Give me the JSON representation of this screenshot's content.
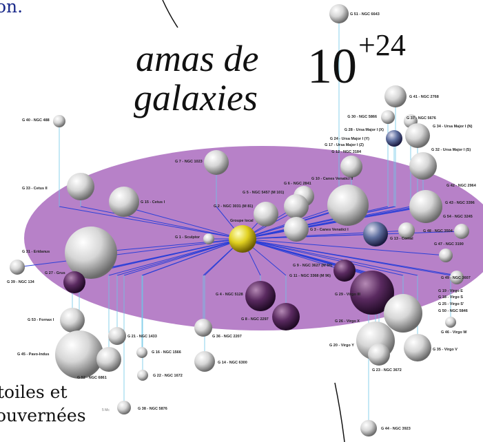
{
  "texts": {
    "top_fragment": "on.",
    "title_line1": "amas de",
    "title_line2": "galaxies",
    "scale_base": "10",
    "scale_exponent": "+24",
    "bottom_line1": "toiles et",
    "bottom_line2": "ouvernées",
    "scale_note": "5 Mc"
  },
  "nodes": [
    {
      "label": "G 51 - NGC 6643"
    },
    {
      "label": "G 41 - NGC 2768"
    },
    {
      "label": "G 30 - NGC 5866"
    },
    {
      "label": "G 37 - NGC 5676"
    },
    {
      "label": "G 34 - Ursa Major I (N)"
    },
    {
      "label": "G 28 - Ursa Major I (X)"
    },
    {
      "label": "G 24 - Ursa Major I (Y)"
    },
    {
      "label": "G 17 - Ursa Major I (Z)"
    },
    {
      "label": "G 12 - NGC 3184"
    },
    {
      "label": "G 32 - Ursa Major I (S)"
    },
    {
      "label": "G 40 - NGC 488"
    },
    {
      "label": "G 7 - NGC 1023"
    },
    {
      "label": "G 33 - Cetus II"
    },
    {
      "label": "G 15 - Cetus I"
    },
    {
      "label": "G 10 - Canes Venatici II"
    },
    {
      "label": "G 6 - NGC 2841"
    },
    {
      "label": "G 5 - NGC 5457 (M 101)"
    },
    {
      "label": "G 2 - NGC 3031 (M 81)"
    },
    {
      "label": "G 42 - NGC 2964"
    },
    {
      "label": "G 43 - NGC 3396"
    },
    {
      "label": "G 54 - NGC 3245"
    },
    {
      "label": "G 48 - NGC 3504"
    },
    {
      "label": "G 13 - Comal"
    },
    {
      "label": "G 3 - Canes Venatici I"
    },
    {
      "label": "Groupe local"
    },
    {
      "label": "G 1 - Sculptor"
    },
    {
      "label": "G 47 - NGC 3190"
    },
    {
      "label": "G 31 - Eridanus"
    },
    {
      "label": "G 9 - NGC 3627 (M 66)"
    },
    {
      "label": "G 11 - NGC 3368 (M 96)"
    },
    {
      "label": "G 39 - NGC 134"
    },
    {
      "label": "G 27 - Grus"
    },
    {
      "label": "G 49 - NGC 3607"
    },
    {
      "label": "G 19 - Virgo E"
    },
    {
      "label": "G 18 - Virgo S"
    },
    {
      "label": "G 25 - Virgo S'"
    },
    {
      "label": "G 50 - NGC 5846"
    },
    {
      "label": "G 4 - NGC 5128"
    },
    {
      "label": "G 29 - Virgo III"
    },
    {
      "label": "G 26 - Virgo X"
    },
    {
      "label": "G 8 - NGC 2297"
    },
    {
      "label": "G 46 - Virgo W"
    },
    {
      "label": "G 53 - Fornax I"
    },
    {
      "label": "G 36 - NGC 2207"
    },
    {
      "label": "G 21 - NGC 1433"
    },
    {
      "label": "G 20 - Virgo Y"
    },
    {
      "label": "G 35 - Virgo V"
    },
    {
      "label": "G 45 - Pavo-Indus"
    },
    {
      "label": "G 16 - NGC 1566"
    },
    {
      "label": "G 14 - NGC 6300"
    },
    {
      "label": "G 52 - NGC 6861"
    },
    {
      "label": "G 22 - NGC 1672"
    },
    {
      "label": "G 23 - NGC 3672"
    },
    {
      "label": "G 38 - NGC 5876"
    },
    {
      "label": "G 44 - NGC 3923"
    }
  ]
}
